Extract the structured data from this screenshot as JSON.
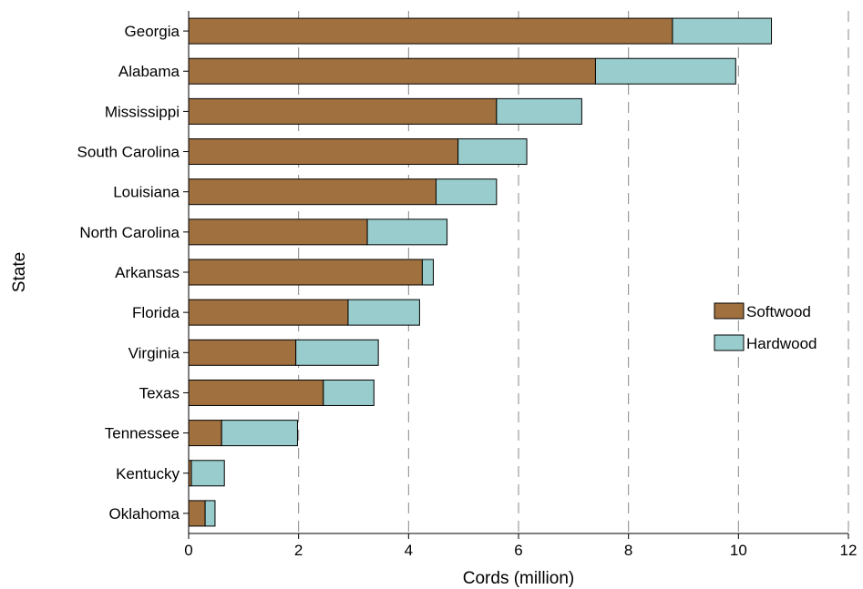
{
  "chart_data": {
    "type": "bar",
    "orientation": "horizontal",
    "stacked": true,
    "categories": [
      "Georgia",
      "Alabama",
      "Mississippi",
      "South Carolina",
      "Louisiana",
      "North Carolina",
      "Arkansas",
      "Florida",
      "Virginia",
      "Texas",
      "Tennessee",
      "Kentucky",
      "Oklahoma"
    ],
    "series": [
      {
        "name": "Softwood",
        "color": "#a0703f",
        "values": [
          8.8,
          7.4,
          5.6,
          4.9,
          4.5,
          3.25,
          4.25,
          2.9,
          1.95,
          2.45,
          0.6,
          0.05,
          0.3
        ]
      },
      {
        "name": "Hardwood",
        "color": "#99cccc",
        "values": [
          1.8,
          2.55,
          1.55,
          1.25,
          1.1,
          1.45,
          0.2,
          1.3,
          1.5,
          0.92,
          1.38,
          0.6,
          0.18
        ]
      }
    ],
    "xlabel": "Cords (million)",
    "ylabel": "State",
    "xlim": [
      0,
      12
    ],
    "xticks": [
      "0",
      "2",
      "4",
      "6",
      "8",
      "10",
      "12"
    ],
    "grid": "vertical dashed",
    "legend_position": "right"
  }
}
